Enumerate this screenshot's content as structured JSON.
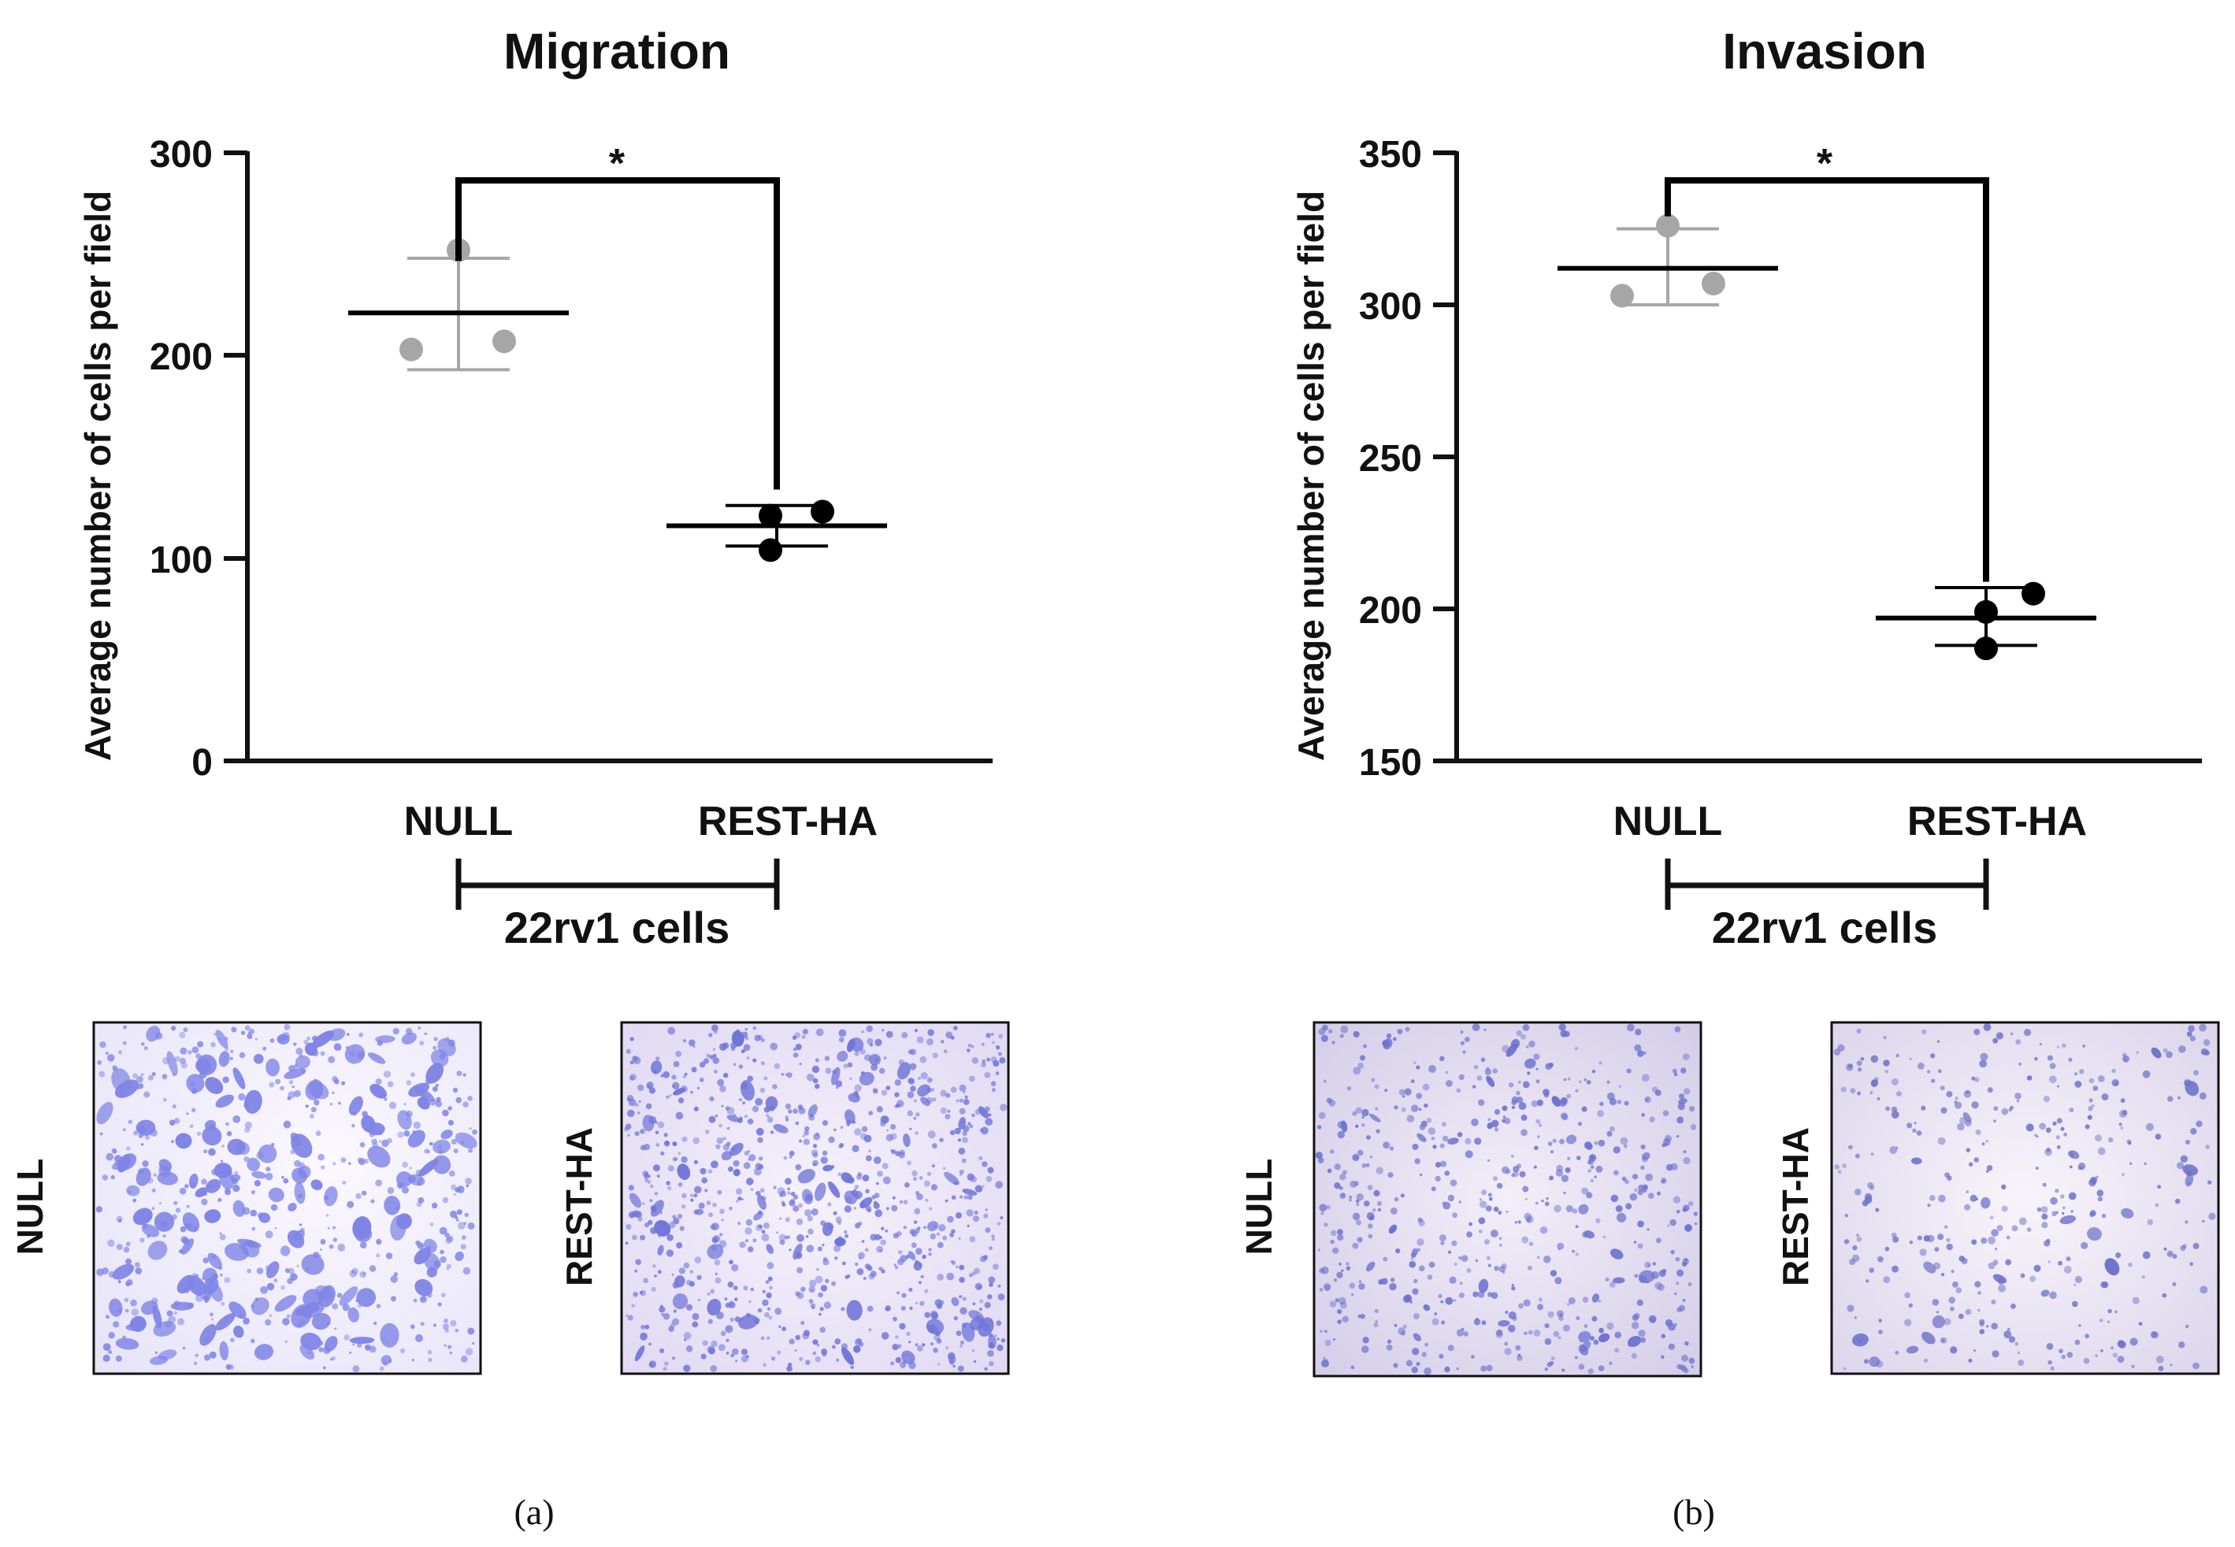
{
  "chart_data": [
    {
      "type": "scatter",
      "title": "Migration",
      "ylabel": "Average number of cells per field",
      "ylim": [
        0,
        300
      ],
      "yticks": [
        "0",
        "100",
        "200",
        "300"
      ],
      "categories": [
        "NULL",
        "REST-HA"
      ],
      "group_label": "22rv1 cells",
      "significance": "*",
      "panel_label": "(a)",
      "series": [
        {
          "name": "NULL",
          "color": "#a6a6a6",
          "points": [
            252,
            203,
            207
          ],
          "mean": 221,
          "sd_low": 193,
          "sd_high": 248
        },
        {
          "name": "REST-HA",
          "color": "#000000",
          "points": [
            121,
            123,
            104
          ],
          "mean": 116,
          "sd_low": 106,
          "sd_high": 126
        }
      ],
      "micrographs": [
        {
          "label": "NULL",
          "tone": "#7f84e6",
          "density": "high"
        },
        {
          "label": "REST-HA",
          "tone": "#7075d8",
          "density": "medium"
        }
      ]
    },
    {
      "type": "scatter",
      "title": "Invasion",
      "ylabel": "Average number of cells per field",
      "ylim": [
        150,
        350
      ],
      "yticks": [
        "150",
        "200",
        "250",
        "300",
        "350"
      ],
      "categories": [
        "NULL",
        "REST-HA"
      ],
      "group_label": "22rv1 cells",
      "significance": "*",
      "panel_label": "(b)",
      "series": [
        {
          "name": "NULL",
          "color": "#a6a6a6",
          "points": [
            326,
            303,
            307
          ],
          "mean": 312,
          "sd_low": 300,
          "sd_high": 325
        },
        {
          "name": "REST-HA",
          "color": "#000000",
          "points": [
            199,
            205,
            187
          ],
          "mean": 197,
          "sd_low": 188,
          "sd_high": 207
        }
      ],
      "micrographs": [
        {
          "label": "NULL",
          "tone": "#6c72cf",
          "density": "medium"
        },
        {
          "label": "REST-HA",
          "tone": "#6f73c9",
          "density": "low"
        }
      ]
    }
  ]
}
